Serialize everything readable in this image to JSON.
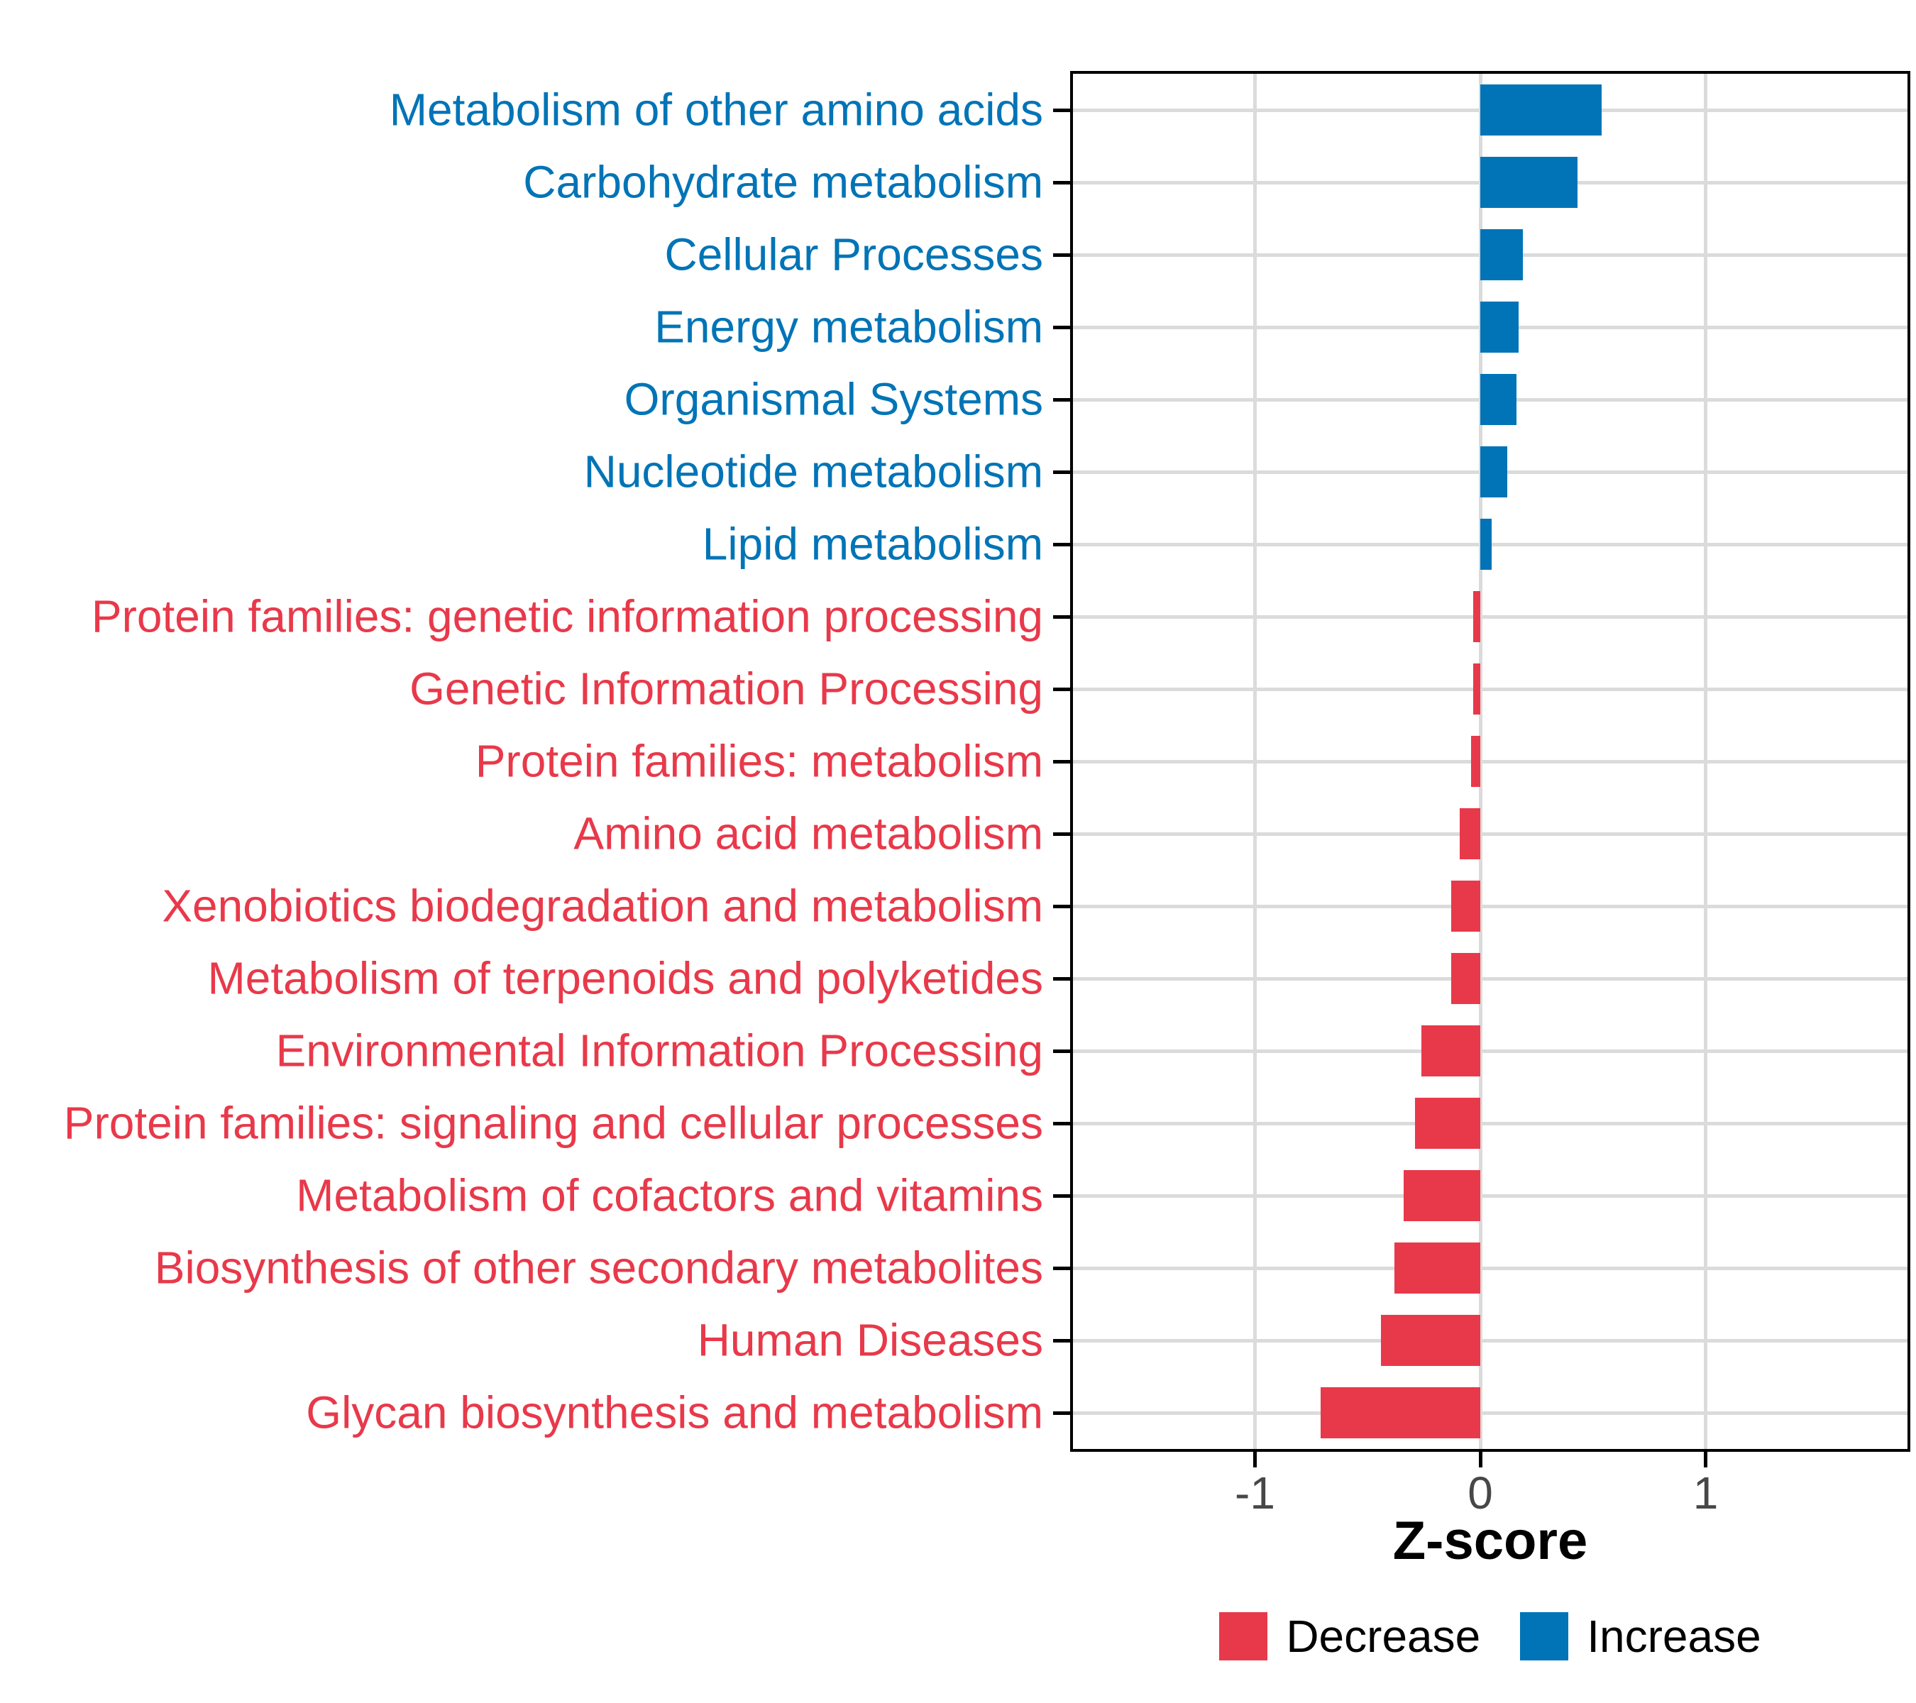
{
  "chart_data": {
    "type": "bar",
    "orientation": "horizontal",
    "title": "",
    "xlabel": "Z-score",
    "ylabel": "",
    "grid": true,
    "legend_position": "bottom",
    "xlim": [
      -1.82,
      1.91
    ],
    "x_tick_values": [
      -1,
      0,
      1
    ],
    "x_tick_labels": [
      "-1",
      "0",
      "1"
    ],
    "groups": [
      {
        "name": "Decrease",
        "color": "#E8394A"
      },
      {
        "name": "Increase",
        "color": "#0074B6"
      }
    ],
    "bars": [
      {
        "category": "Metabolism of other amino acids",
        "value": 0.54,
        "group": "Increase"
      },
      {
        "category": "Carbohydrate metabolism",
        "value": 0.43,
        "group": "Increase"
      },
      {
        "category": "Cellular Processes",
        "value": 0.19,
        "group": "Increase"
      },
      {
        "category": "Energy metabolism",
        "value": 0.17,
        "group": "Increase"
      },
      {
        "category": "Organismal Systems",
        "value": 0.16,
        "group": "Increase"
      },
      {
        "category": "Nucleotide metabolism",
        "value": 0.12,
        "group": "Increase"
      },
      {
        "category": "Lipid metabolism",
        "value": 0.05,
        "group": "Increase"
      },
      {
        "category": "Protein families: genetic information processing",
        "value": -0.03,
        "group": "Decrease"
      },
      {
        "category": "Genetic Information Processing",
        "value": -0.03,
        "group": "Decrease"
      },
      {
        "category": "Protein families: metabolism",
        "value": -0.04,
        "group": "Decrease"
      },
      {
        "category": "Amino acid metabolism",
        "value": -0.09,
        "group": "Decrease"
      },
      {
        "category": "Xenobiotics biodegradation and metabolism",
        "value": -0.13,
        "group": "Decrease"
      },
      {
        "category": "Metabolism of terpenoids and polyketides",
        "value": -0.13,
        "group": "Decrease"
      },
      {
        "category": "Environmental Information Processing",
        "value": -0.26,
        "group": "Decrease"
      },
      {
        "category": "Protein families: signaling and cellular processes",
        "value": -0.29,
        "group": "Decrease"
      },
      {
        "category": "Metabolism of cofactors and vitamins",
        "value": -0.34,
        "group": "Decrease"
      },
      {
        "category": "Biosynthesis of other secondary metabolites",
        "value": -0.38,
        "group": "Decrease"
      },
      {
        "category": "Human Diseases",
        "value": -0.44,
        "group": "Decrease"
      },
      {
        "category": "Glycan biosynthesis and metabolism",
        "value": -0.71,
        "group": "Decrease"
      }
    ],
    "style": {
      "grid_color": "#DBDBDB",
      "axis_tick_text_color": "#474747",
      "panel_border_color": "#000000",
      "background_color": "#FFFFFF"
    }
  }
}
